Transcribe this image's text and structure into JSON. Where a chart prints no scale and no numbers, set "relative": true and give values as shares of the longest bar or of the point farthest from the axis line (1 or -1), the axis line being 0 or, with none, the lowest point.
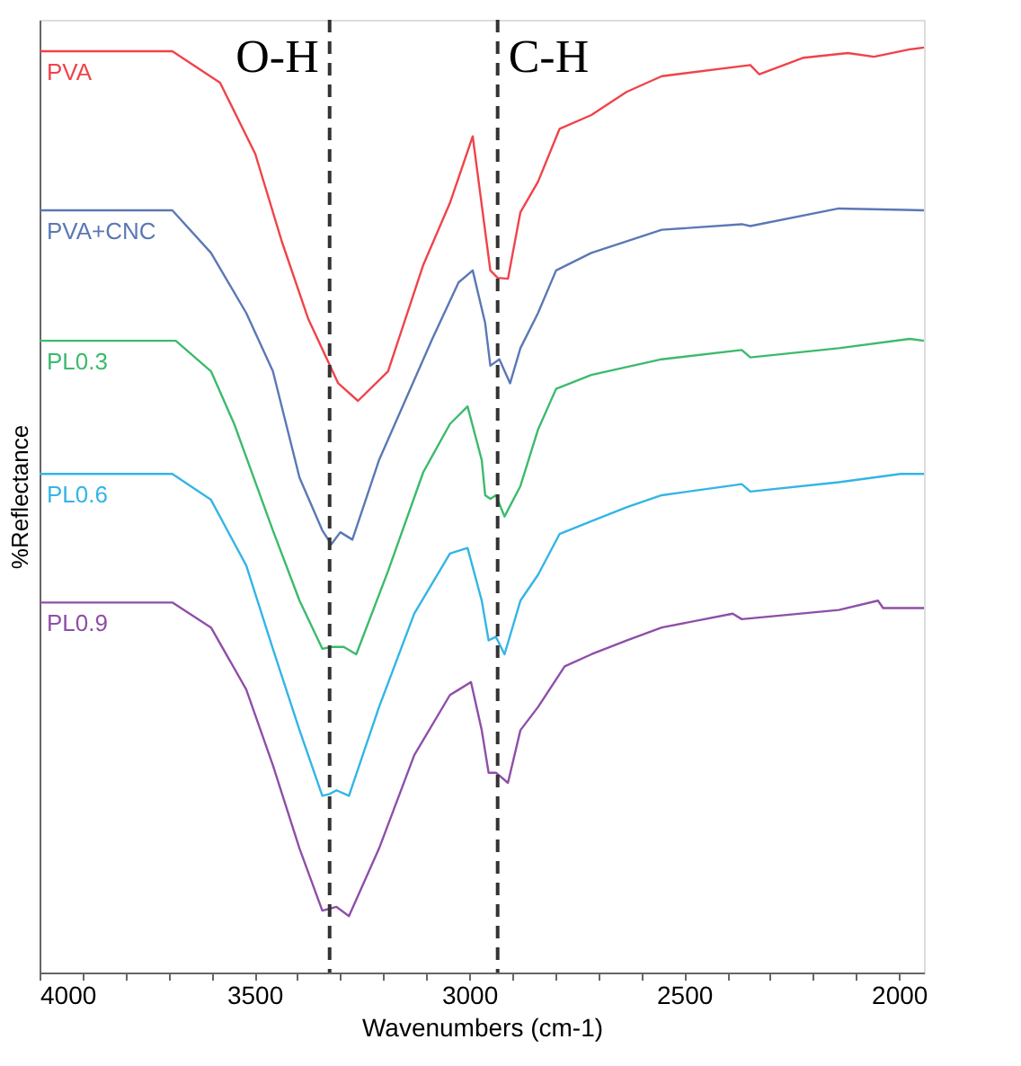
{
  "chart_data": {
    "type": "line",
    "relative": true,
    "xlabel": "Wavenumbers (cm-1)",
    "ylabel": "%Reflectance",
    "xlim": [
      4000,
      1942
    ],
    "xticks": [
      4000,
      {
        "value": 3900,
        "label": null
      },
      {
        "value": 3800,
        "label": null
      },
      {
        "value": 3700,
        "label": null
      },
      {
        "value": 3600,
        "label": null
      },
      3500,
      {
        "value": 3400,
        "label": null
      },
      {
        "value": 3300,
        "label": null
      },
      {
        "value": 3200,
        "label": null
      },
      {
        "value": 3100,
        "label": null
      },
      3000,
      {
        "value": 2900,
        "label": null
      },
      {
        "value": 2800,
        "label": null
      },
      {
        "value": 2700,
        "label": null
      },
      {
        "value": 2600,
        "label": null
      },
      2500,
      {
        "value": 2400,
        "label": null
      },
      {
        "value": 2300,
        "label": null
      },
      {
        "value": 2200,
        "label": null
      },
      {
        "value": 2100,
        "label": null
      },
      2000
    ],
    "legend": false,
    "grid": false,
    "line_style": "solid",
    "marker": "none",
    "ref_lines": [
      {
        "axis": "x",
        "value": 3325,
        "label": "O-H",
        "color": "#333333",
        "line_style": "dashed"
      },
      {
        "axis": "x",
        "value": 2934,
        "label": "C-H",
        "color": "#333333",
        "line_style": "dashed"
      }
    ],
    "series": [
      {
        "name": "PVA",
        "color": "#f0434a",
        "x": [
          4000,
          3691,
          3580,
          3498,
          3436,
          3375,
          3305,
          3259,
          3189,
          3107,
          3045,
          2992,
          2951,
          2934,
          2910,
          2881,
          2840,
          2790,
          2716,
          2634,
          2552,
          2346,
          2325,
          2222,
          2119,
          2058,
          1975,
          1942
        ],
        "values": [
          0.996,
          0.996,
          0.962,
          0.885,
          0.79,
          0.707,
          0.637,
          0.618,
          0.65,
          0.765,
          0.832,
          0.904,
          0.759,
          0.751,
          0.75,
          0.822,
          0.855,
          0.912,
          0.927,
          0.952,
          0.969,
          0.981,
          0.971,
          0.989,
          0.994,
          0.99,
          0.998,
          1.0
        ]
      },
      {
        "name": "PVA+CNC",
        "color": "#5b78b5",
        "x": [
          4000,
          3691,
          3601,
          3519,
          3457,
          3395,
          3342,
          3321,
          3300,
          3272,
          3210,
          3086,
          3025,
          2992,
          2963,
          2951,
          2930,
          2905,
          2881,
          2840,
          2798,
          2716,
          2552,
          2366,
          2346,
          2140,
          1942
        ],
        "values": [
          0.824,
          0.824,
          0.778,
          0.713,
          0.65,
          0.535,
          0.478,
          0.463,
          0.476,
          0.468,
          0.554,
          0.685,
          0.746,
          0.759,
          0.702,
          0.656,
          0.663,
          0.637,
          0.675,
          0.713,
          0.759,
          0.778,
          0.803,
          0.809,
          0.807,
          0.826,
          0.824
        ]
      },
      {
        "name": "PL0.3",
        "color": "#3dba6d",
        "x": [
          4000,
          3683,
          3601,
          3547,
          3457,
          3395,
          3342,
          3321,
          3292,
          3263,
          3189,
          3107,
          3045,
          3004,
          2971,
          2963,
          2951,
          2938,
          2918,
          2881,
          2840,
          2798,
          2716,
          2552,
          2366,
          2346,
          2140,
          1975,
          1942
        ],
        "values": [
          0.683,
          0.683,
          0.65,
          0.593,
          0.478,
          0.402,
          0.35,
          0.352,
          0.352,
          0.344,
          0.434,
          0.541,
          0.593,
          0.612,
          0.554,
          0.516,
          0.512,
          0.516,
          0.493,
          0.526,
          0.587,
          0.631,
          0.646,
          0.663,
          0.673,
          0.665,
          0.675,
          0.685,
          0.683
        ]
      },
      {
        "name": "PL0.6",
        "color": "#33b5e5",
        "x": [
          4000,
          3691,
          3601,
          3519,
          3457,
          3395,
          3342,
          3325,
          3309,
          3280,
          3210,
          3128,
          3045,
          3004,
          2971,
          2955,
          2938,
          2918,
          2881,
          2840,
          2790,
          2716,
          2634,
          2552,
          2366,
          2346,
          2140,
          1996,
          1942
        ],
        "values": [
          0.539,
          0.539,
          0.511,
          0.44,
          0.35,
          0.262,
          0.191,
          0.193,
          0.197,
          0.191,
          0.287,
          0.388,
          0.453,
          0.459,
          0.402,
          0.359,
          0.363,
          0.344,
          0.402,
          0.43,
          0.474,
          0.488,
          0.503,
          0.516,
          0.528,
          0.52,
          0.53,
          0.539,
          0.539
        ]
      },
      {
        "name": "PL0.9",
        "color": "#8e4fa8",
        "x": [
          4000,
          3691,
          3601,
          3519,
          3457,
          3395,
          3342,
          3325,
          3309,
          3280,
          3210,
          3128,
          3045,
          2996,
          2971,
          2955,
          2938,
          2910,
          2881,
          2840,
          2778,
          2716,
          2634,
          2552,
          2387,
          2366,
          2140,
          2049,
          2037,
          1942
        ],
        "values": [
          0.4,
          0.4,
          0.373,
          0.306,
          0.224,
          0.134,
          0.067,
          0.069,
          0.071,
          0.061,
          0.134,
          0.235,
          0.3,
          0.314,
          0.262,
          0.216,
          0.216,
          0.205,
          0.262,
          0.287,
          0.331,
          0.344,
          0.359,
          0.373,
          0.388,
          0.382,
          0.392,
          0.402,
          0.394,
          0.394
        ]
      }
    ]
  }
}
